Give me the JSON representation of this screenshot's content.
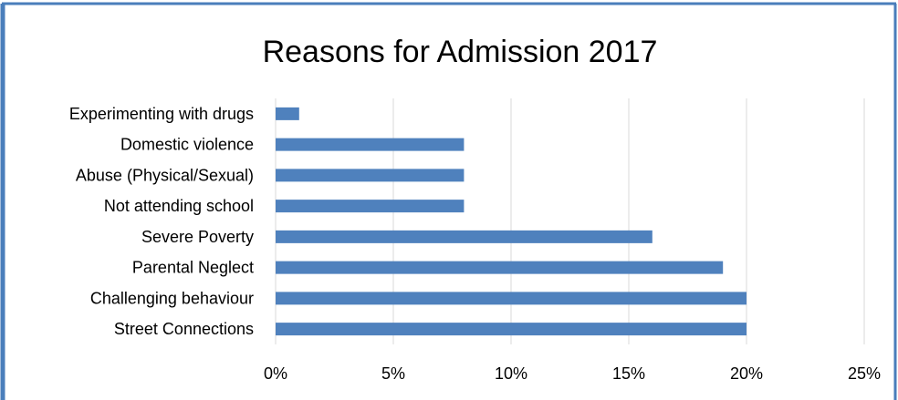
{
  "chart_data": {
    "type": "bar",
    "orientation": "horizontal",
    "title": "Reasons for Admission 2017",
    "categories": [
      "Experimenting with drugs",
      "Domestic violence",
      "Abuse (Physical/Sexual)",
      "Not attending school",
      "Severe Poverty",
      "Parental Neglect",
      "Challenging behaviour",
      "Street Connections"
    ],
    "values": [
      1,
      8,
      8,
      8,
      16,
      19,
      20,
      20
    ],
    "xlim": [
      0,
      25
    ],
    "xticks": [
      "0%",
      "5%",
      "10%",
      "15%",
      "20%",
      "25%"
    ],
    "xtick_values": [
      0,
      5,
      10,
      15,
      20,
      25
    ],
    "grid": "vertical",
    "legend": "none",
    "colors": {
      "bar": "#4f81bd",
      "grid": "#d9d9d9",
      "border": "#4a7ebb"
    }
  }
}
